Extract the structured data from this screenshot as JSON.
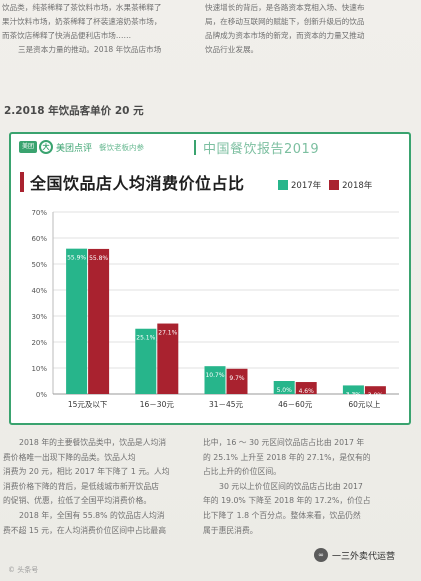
{
  "top_text": {
    "left": [
      "饮品类，纯茶稀释了茶饮料市场，水果茶稀释了",
      "果汁饮料市场，奶茶稀释了杯装速溶奶茶市场，",
      "而茶饮店稀释了快消品便利店市场……",
      "三是资本力量的推动。2018 年饮品店市场"
    ],
    "right": [
      "快速增长的背后，是各路资本竞相入场、快速布",
      "局，在移动互联网的赋能下，创新升级后的饮品",
      "品牌成为资本市场的新宠，而资本的力量又推动",
      "饮品行业发展。"
    ]
  },
  "section_heading": "2.2018 年饮品客单价 20 元",
  "frame": {
    "brand_box": "美团",
    "brand_badge": "大",
    "brand_name": "美团点评",
    "brand_series": "餐饮老板内参",
    "report_title": "中国餐饮报告2019"
  },
  "colors": {
    "series_2017": "#27b58b",
    "series_2018": "#a9222f",
    "frame": "#3aa36f",
    "gridline": "#e2e2e2"
  },
  "chart_data": {
    "type": "bar",
    "title": "全国饮品店人均消费价位占比",
    "xlabel": "",
    "ylabel": "",
    "ylim": [
      0,
      70
    ],
    "yticks": [
      "0%",
      "10%",
      "20%",
      "30%",
      "40%",
      "50%",
      "60%",
      "70%"
    ],
    "grid": true,
    "legend_position": "top-right",
    "categories": [
      "15元及以下",
      "16－30元",
      "31－45元",
      "46－60元",
      "60元以上"
    ],
    "series": [
      {
        "name": "2017年",
        "values": [
          55.9,
          25.1,
          10.7,
          5.0,
          3.3
        ],
        "labels": [
          "55.9%",
          "25.1%",
          "10.7%",
          "5.0%",
          "3.3%"
        ]
      },
      {
        "name": "2018年",
        "values": [
          55.8,
          27.1,
          9.7,
          4.6,
          3.0
        ],
        "labels": [
          "55.8%",
          "27.1%",
          "9.7%",
          "4.6%",
          "3.0%"
        ]
      }
    ]
  },
  "body_text": {
    "left": [
      "2018 年的主要餐饮品类中，饮品是人均消",
      "费价格唯一出现下降的品类。饮品人均",
      "消费为 20 元，相比 2017 年下降了 1 元。人均",
      "消费价格下降的背后，是低线城市新开饮品店",
      "的促销、优惠，拉低了全国平均消费价格。",
      "2018 年，全国有 55.8% 的饮品店人均消",
      "费不超 15 元，在人均消费价位区间中占比最高"
    ],
    "right": [
      "比中，16 ～ 30 元区间饮品店占比由 2017 年",
      "的 25.1% 上升至 2018 年的 27.1%，是仅有的",
      "占比上升的价位区间。",
      "30 元以上价位区间的饮品店占比由 2017",
      "年的 19.0% 下降至 2018 年的 17.2%，价位占",
      "比下降了 1.8 个百分点。整体来看，饮品仍然",
      "属于惠民消费。"
    ]
  },
  "watermarks": {
    "left": "© 头条号",
    "right_icon": "∞",
    "right": "一三外卖代运营"
  }
}
